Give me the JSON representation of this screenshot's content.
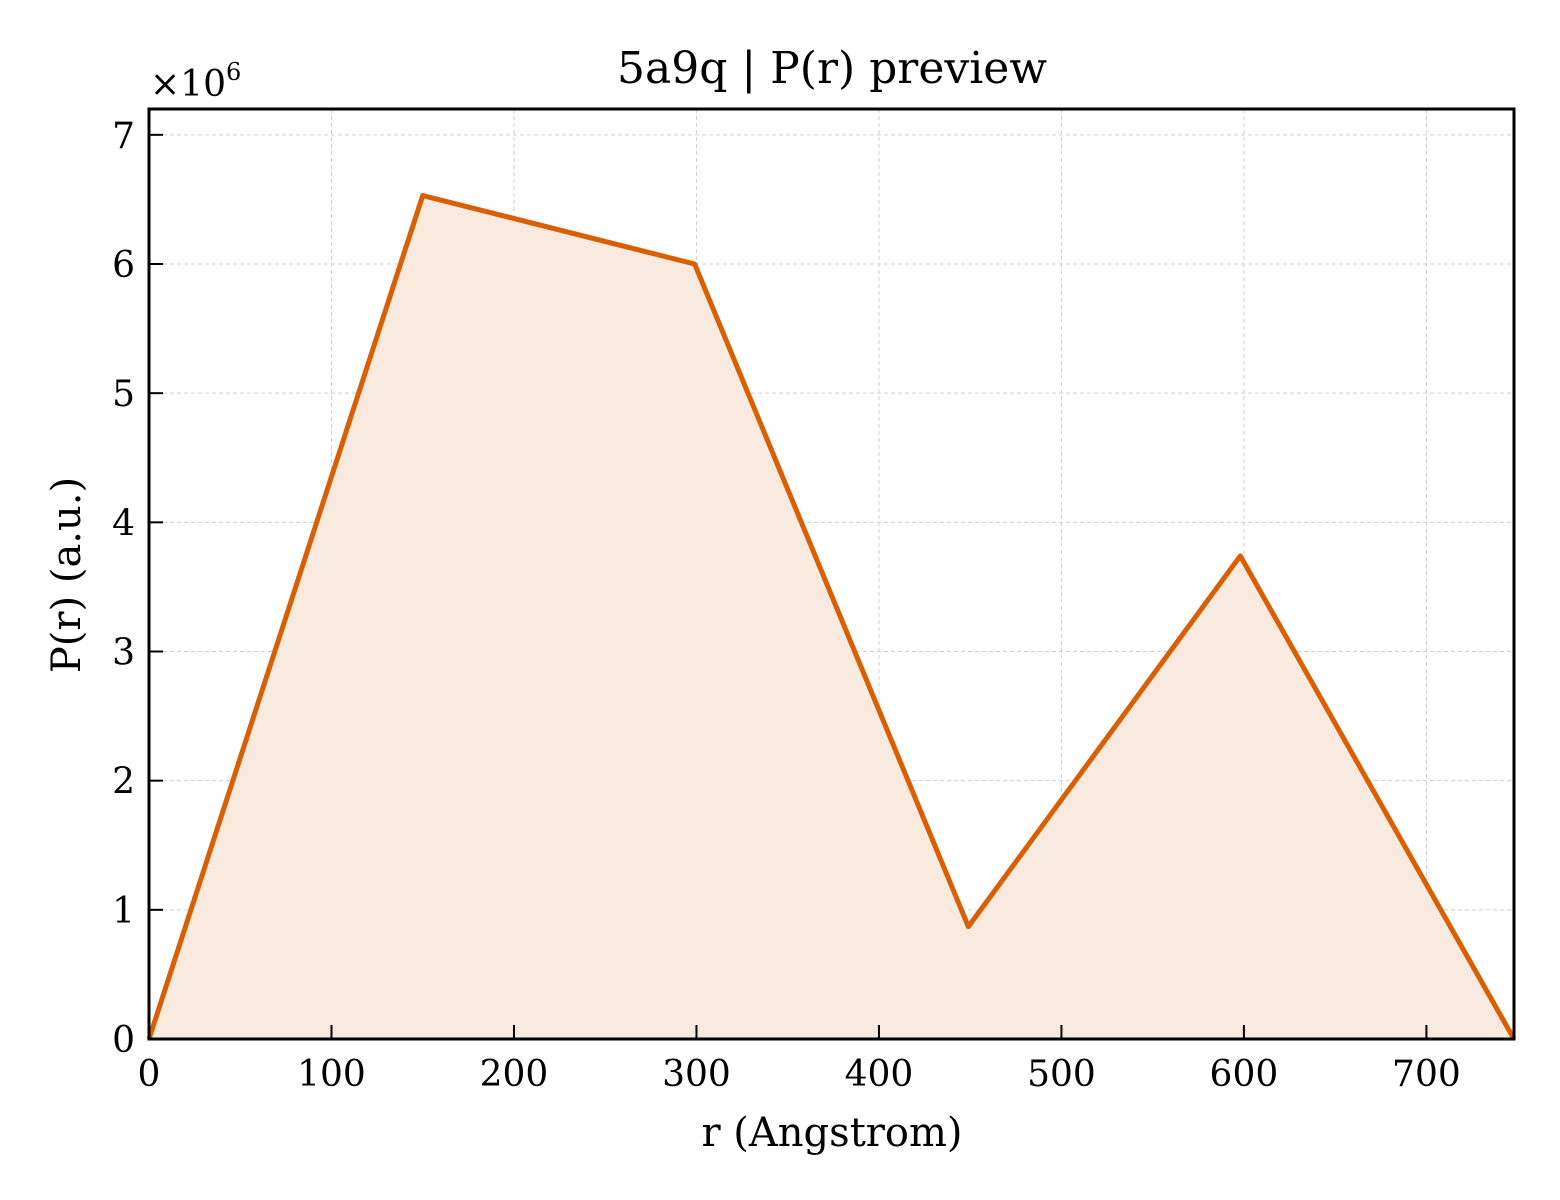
{
  "chart_data": {
    "type": "area",
    "title": "5a9q | P(r) preview",
    "xlabel": "r (Angstrom)",
    "ylabel": "P(r) (a.u.)",
    "y_multiplier": "×10",
    "y_multiplier_exponent": "6",
    "xlim": [
      0,
      748
    ],
    "ylim": [
      0,
      7.2
    ],
    "x_ticks": [
      0,
      100,
      200,
      300,
      400,
      500,
      600,
      700
    ],
    "y_ticks": [
      0,
      1,
      2,
      3,
      4,
      5,
      6,
      7
    ],
    "grid": true,
    "series": [
      {
        "x": [
          0,
          150,
          299,
          449,
          598,
          748
        ],
        "y": [
          0.0,
          6.53,
          6.0,
          0.87,
          3.74,
          0.0
        ]
      }
    ],
    "colors": {
      "line": "#d95f02",
      "fill": "#f9eadf",
      "grid": "#d0d0d0",
      "axes": "#000000"
    }
  }
}
